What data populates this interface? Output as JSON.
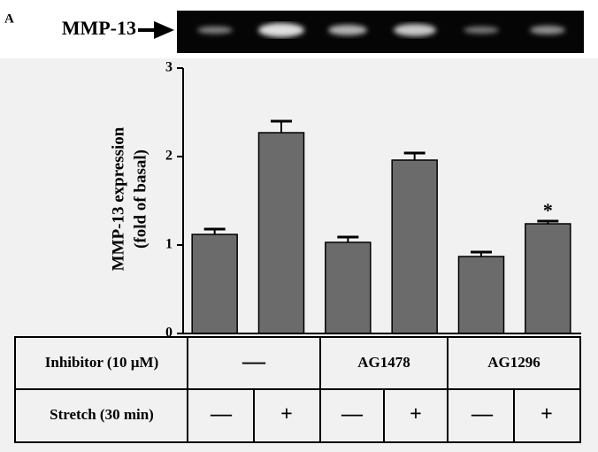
{
  "panel_label": "A",
  "chart_data": {
    "type": "bar",
    "blot_label": "MMP-13",
    "y_label": [
      "MMP-13 expression",
      "(fold of basal)"
    ],
    "categories": [
      null,
      null,
      null,
      null,
      null,
      null
    ],
    "series": [
      {
        "color": "#6b6b6b",
        "values": [
          1.12,
          2.27,
          1.03,
          1.96,
          0.87,
          1.24
        ],
        "errors": [
          0.06,
          0.13,
          0.06,
          0.08,
          0.05,
          0.03
        ]
      }
    ],
    "ylim": [
      0,
      3
    ],
    "yticks": [
      0,
      1,
      2,
      3
    ],
    "annotation": "*"
  },
  "table": {
    "rows": [
      [
        "Inhibitor (10 µM)",
        "—",
        "AG1478",
        "AG1296"
      ],
      [
        "Stretch (30 min)",
        "—",
        "+",
        "—",
        "+",
        "—",
        "+"
      ]
    ]
  }
}
